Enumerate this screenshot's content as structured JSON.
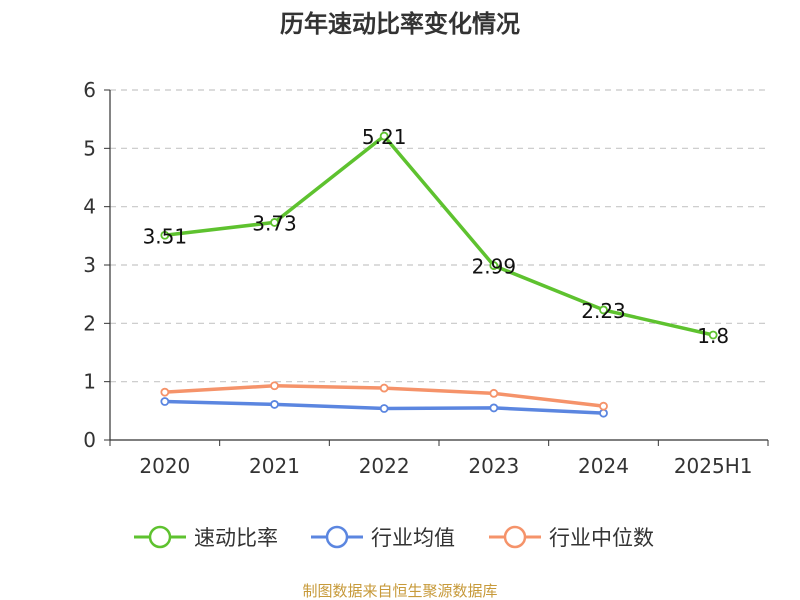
{
  "chart_data": {
    "type": "line",
    "title": "历年速动比率变化情况",
    "categories": [
      "2020",
      "2021",
      "2022",
      "2023",
      "2024",
      "2025H1"
    ],
    "ylim": [
      0,
      6
    ],
    "yticks": [
      "0",
      "1",
      "2",
      "3",
      "4",
      "5",
      "6"
    ],
    "grid": true,
    "legend_position": "bottom",
    "series": [
      {
        "name": "速动比率",
        "color": "#5ec22f",
        "values": [
          3.51,
          3.73,
          5.21,
          2.99,
          2.23,
          1.8
        ],
        "labels": [
          "3.51",
          "3.73",
          "5.21",
          "2.99",
          "2.23",
          "1.8"
        ]
      },
      {
        "name": "行业均值",
        "color": "#5b86e0",
        "values": [
          0.66,
          0.61,
          0.54,
          0.55,
          0.46,
          null
        ]
      },
      {
        "name": "行业中位数",
        "color": "#f5936a",
        "values": [
          0.82,
          0.93,
          0.89,
          0.8,
          0.58,
          null
        ]
      }
    ]
  },
  "footer": {
    "source": "制图数据来自恒生聚源数据库"
  }
}
